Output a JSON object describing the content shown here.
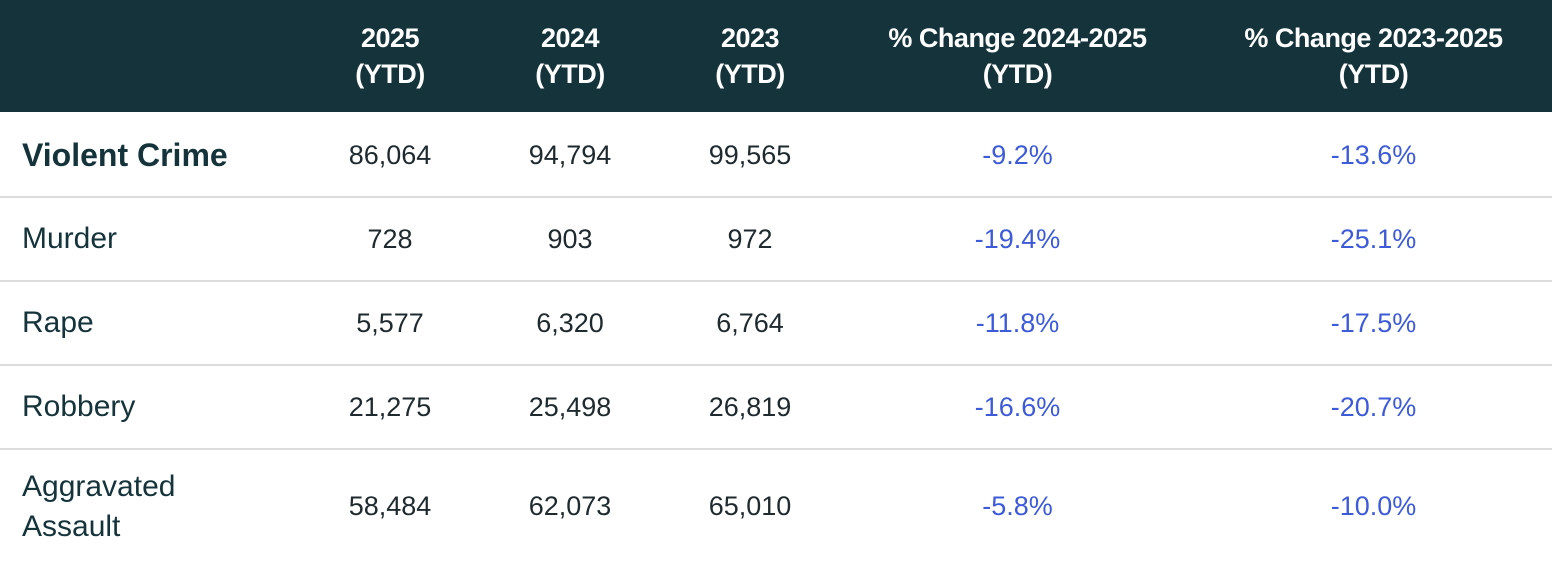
{
  "table": {
    "header": [
      "2025\n(YTD)",
      "2024\n(YTD)",
      "2023\n(YTD)",
      "% Change 2024-2025\n(YTD)",
      "% Change 2023-2025\n(YTD)"
    ],
    "rows": [
      {
        "label": "Violent Crime",
        "cells": [
          "86,064",
          "94,794",
          "99,565",
          "-9.2%",
          "-13.6%"
        ]
      },
      {
        "label": "Murder",
        "cells": [
          "728",
          "903",
          "972",
          "-19.4%",
          "-25.1%"
        ]
      },
      {
        "label": "Rape",
        "cells": [
          "5,577",
          "6,320",
          "6,764",
          "-11.8%",
          "-17.5%"
        ]
      },
      {
        "label": "Robbery",
        "cells": [
          "21,275",
          "25,498",
          "26,819",
          "-16.6%",
          "-20.7%"
        ]
      },
      {
        "label": "Aggravated Assault",
        "cells": [
          "58,484",
          "62,073",
          "65,010",
          "-5.8%",
          "-10.0%"
        ]
      }
    ]
  }
}
